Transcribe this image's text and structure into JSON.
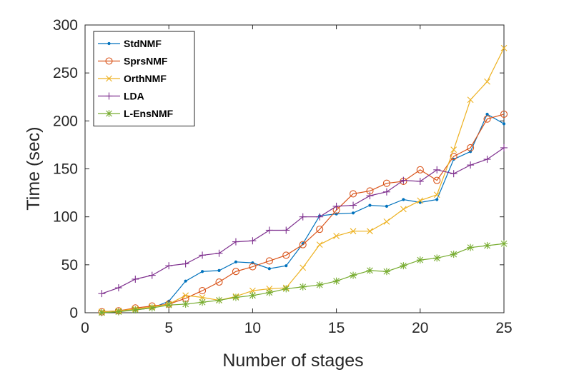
{
  "chart_data": {
    "type": "line",
    "title": "",
    "xlabel": "Number of stages",
    "ylabel": "Time (sec)",
    "xlim": [
      0,
      25
    ],
    "ylim": [
      0,
      300
    ],
    "xticks": [
      0,
      5,
      10,
      15,
      20,
      25
    ],
    "yticks": [
      0,
      50,
      100,
      150,
      200,
      250,
      300
    ],
    "grid": false,
    "legend_position": "top-left",
    "x": [
      1,
      2,
      3,
      4,
      5,
      6,
      7,
      8,
      9,
      10,
      11,
      12,
      13,
      14,
      15,
      16,
      17,
      18,
      19,
      20,
      21,
      22,
      23,
      24,
      25
    ],
    "series": [
      {
        "name": "StdNMF",
        "color": "#0072BD",
        "marker": "point",
        "values": [
          1,
          2,
          3,
          5,
          12,
          33,
          43,
          44,
          53,
          52,
          46,
          49,
          72,
          101,
          103,
          104,
          112,
          111,
          118,
          115,
          118,
          160,
          168,
          207,
          197
        ]
      },
      {
        "name": "SprsNMF",
        "color": "#D95319",
        "marker": "circle",
        "values": [
          1,
          2,
          5,
          7,
          9,
          15,
          23,
          32,
          43,
          48,
          54,
          60,
          71,
          87,
          107,
          124,
          127,
          135,
          137,
          149,
          138,
          163,
          172,
          202,
          207
        ]
      },
      {
        "name": "OrthNMF",
        "color": "#EDB120",
        "marker": "cross",
        "values": [
          1,
          2,
          4,
          6,
          9,
          18,
          16,
          13,
          17,
          23,
          25,
          26,
          47,
          71,
          80,
          85,
          85,
          95,
          108,
          117,
          123,
          170,
          222,
          241,
          276
        ]
      },
      {
        "name": "LDA",
        "color": "#7E2F8E",
        "marker": "plus",
        "values": [
          20,
          26,
          35,
          39,
          49,
          51,
          60,
          62,
          74,
          75,
          86,
          86,
          100,
          100,
          111,
          112,
          122,
          126,
          138,
          137,
          149,
          145,
          154,
          160,
          172
        ]
      },
      {
        "name": "L-EnsNMF",
        "color": "#77AC30",
        "marker": "asterisk",
        "values": [
          0,
          1,
          3,
          5,
          8,
          9,
          11,
          13,
          16,
          18,
          21,
          25,
          27,
          29,
          33,
          39,
          44,
          43,
          49,
          55,
          57,
          61,
          68,
          70,
          72
        ]
      }
    ]
  }
}
